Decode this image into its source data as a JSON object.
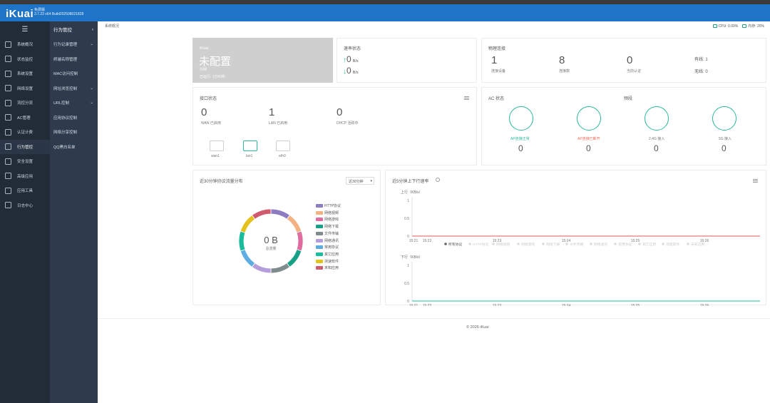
{
  "header": {
    "logo": "iKuai",
    "edition": "免费版",
    "version": "3.7.23 x64 Build202508021828"
  },
  "sidebar": {
    "items": [
      {
        "label": "系统概况"
      },
      {
        "label": "状态监控"
      },
      {
        "label": "系统设置"
      },
      {
        "label": "网络设置"
      },
      {
        "label": "流控分流"
      },
      {
        "label": "AC管理"
      },
      {
        "label": "认证计费"
      },
      {
        "label": "行为管控",
        "active": true
      },
      {
        "label": "安全设置"
      },
      {
        "label": "高级应用"
      },
      {
        "label": "应用工具"
      },
      {
        "label": "日志中心"
      }
    ]
  },
  "submenu": {
    "title": "行为管控",
    "items": [
      {
        "label": "行为记录管理",
        "chevron": true
      },
      {
        "label": "终端名称管理"
      },
      {
        "label": "MAC访问控制"
      },
      {
        "label": "网址浏览控制",
        "chevron": true
      },
      {
        "label": "URL控制",
        "chevron": true
      },
      {
        "label": "应用协议控制"
      },
      {
        "label": "网络分享控制"
      },
      {
        "label": "QQ黑白名单"
      }
    ]
  },
  "topbar": {
    "breadcrumb": "系统概况",
    "cpu": "CPU: 0.00%",
    "mem": "内存: 20%"
  },
  "wan_card": {
    "brand": "iKuai",
    "status": "未配置",
    "sub": "外网",
    "uptime": "已运行: 1分43秒"
  },
  "rate_card": {
    "title": "速率状态",
    "up_value": "0",
    "up_unit": "B/s",
    "down_value": "0",
    "down_unit": "B/s"
  },
  "phys_card": {
    "title": "物理连接",
    "stats": [
      {
        "value": "1",
        "label": "连接设备"
      },
      {
        "value": "8",
        "label": "连接数"
      },
      {
        "value": "0",
        "label": "当前认证"
      }
    ],
    "wired": "有线: 1",
    "wireless": "无线: 0"
  },
  "iface_card": {
    "title": "接口状态",
    "stats": [
      {
        "value": "0",
        "label": "WAN 已启用"
      },
      {
        "value": "1",
        "label": "LAN 已启用"
      },
      {
        "value": "0",
        "label": "DHCP 活跃中"
      }
    ],
    "ports": [
      {
        "name": "wan1",
        "up": false
      },
      {
        "name": "lan1",
        "up": true
      },
      {
        "name": "eth0",
        "up": false
      }
    ]
  },
  "ac_card": {
    "title": "AC 状态",
    "subtitle": "频段",
    "items": [
      {
        "label": "AP连接正常",
        "value": "0",
        "color": "#2bb79b"
      },
      {
        "label": "AP连接已断开",
        "value": "0",
        "color": "#f06a5b"
      },
      {
        "label": "2.4G 接入",
        "value": "0",
        "color": "#555555"
      },
      {
        "label": "5G 接入",
        "value": "0",
        "color": "#555555"
      }
    ]
  },
  "proto_card": {
    "title": "近30分钟协议流量分布",
    "select": "近30分钟",
    "total_value": "0 B",
    "total_label": "总流量",
    "legend": [
      {
        "name": "HTTP协议",
        "color": "#8e7cc3"
      },
      {
        "name": "网络视频",
        "color": "#f4b183"
      },
      {
        "name": "网络游戏",
        "color": "#e06c9f"
      },
      {
        "name": "网络下载",
        "color": "#16a085"
      },
      {
        "name": "文件传输",
        "color": "#7f8c8d"
      },
      {
        "name": "网络通讯",
        "color": "#b39ddb"
      },
      {
        "name": "常用协议",
        "color": "#5dade2"
      },
      {
        "name": "其它应用",
        "color": "#1abc9c"
      },
      {
        "name": "测速软件",
        "color": "#e5c21b"
      },
      {
        "name": "未知应用",
        "color": "#d05a6e"
      }
    ]
  },
  "speed_card": {
    "title": "近5分钟上下行速率",
    "up_label": "上行（KB/s）",
    "down_label": "下行（KB/s）",
    "legend": [
      "所有协议",
      "HTTP协议",
      "网络视频",
      "网络游戏",
      "网络下载",
      "文件传输",
      "网络通讯",
      "常用协议",
      "其它应用",
      "测速软件",
      "未知应用"
    ]
  },
  "chart_data": [
    {
      "type": "pie",
      "title": "近30分钟协议流量分布",
      "categories": [
        "HTTP协议",
        "网络视频",
        "网络游戏",
        "网络下载",
        "文件传输",
        "网络通讯",
        "常用协议",
        "其它应用",
        "测速软件",
        "未知应用"
      ],
      "values": [
        1,
        1,
        1,
        1,
        1,
        1,
        1,
        1,
        1,
        1
      ],
      "center_text": "0 B",
      "center_label": "总流量"
    },
    {
      "type": "line",
      "title": "上行（KB/s）",
      "x": [
        "15:21",
        "15:22",
        "15:23",
        "15:24",
        "15:25",
        "15:26"
      ],
      "y_ticks": [
        "0",
        "0.5",
        "1"
      ],
      "ylim": [
        0,
        1
      ],
      "series": [
        {
          "name": "所有协议",
          "values": [
            0,
            0,
            0,
            0,
            0,
            0
          ],
          "color": "#e05a5a"
        }
      ]
    },
    {
      "type": "line",
      "title": "下行（KB/s）",
      "x": [
        "15:21",
        "15:22",
        "15:23",
        "15:24",
        "15:25",
        "15:26"
      ],
      "y_ticks": [
        "0",
        "0.5",
        "1"
      ],
      "ylim": [
        0,
        1
      ],
      "series": [
        {
          "name": "所有协议",
          "values": [
            0,
            0,
            0,
            0,
            0,
            0
          ],
          "color": "#1abc9c"
        }
      ]
    }
  ],
  "footer": {
    "copyright": "© 2026 iKuai"
  }
}
